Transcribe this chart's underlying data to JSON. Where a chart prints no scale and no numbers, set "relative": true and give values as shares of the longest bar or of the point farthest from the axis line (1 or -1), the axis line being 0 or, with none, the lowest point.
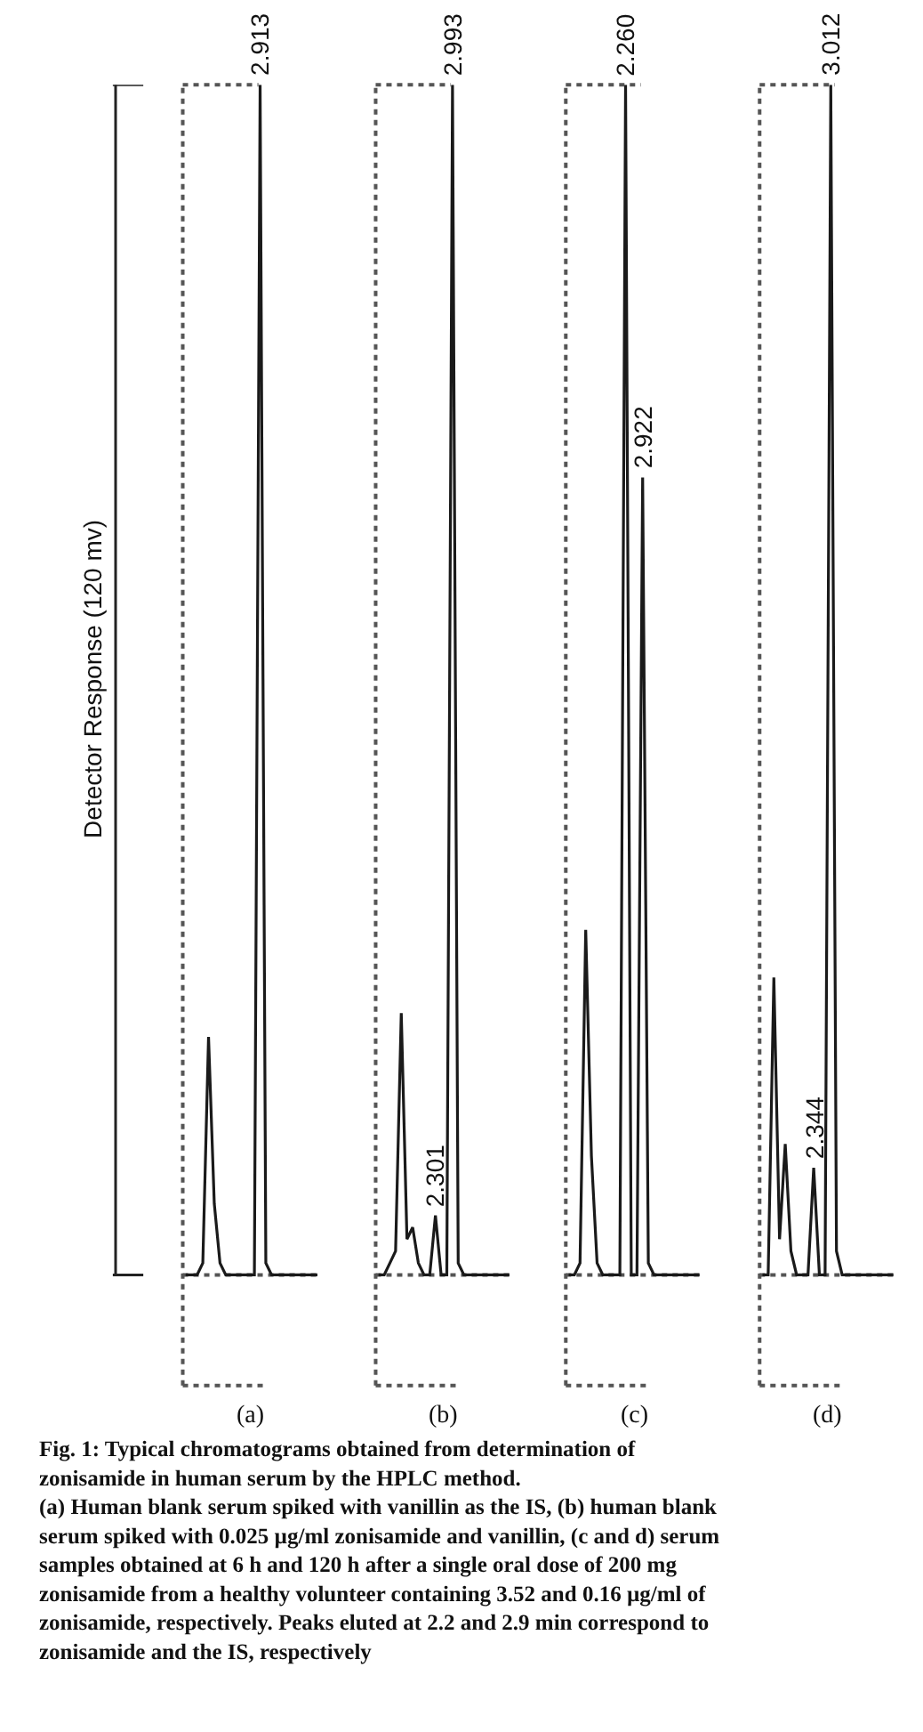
{
  "chart_data": [
    {
      "type": "line",
      "relative": true,
      "ylabel": "Detector Response (120 mv)",
      "xlabel": "(a)",
      "color": "#1a1a1a",
      "categories": [
        null,
        null,
        null,
        null,
        null,
        null,
        null,
        null,
        null,
        null,
        null,
        null,
        null,
        null,
        null,
        null,
        null,
        null,
        null,
        null,
        null,
        null,
        null,
        null
      ],
      "values": [
        0,
        0,
        0,
        0.01,
        0.2,
        0.06,
        0.01,
        0,
        0,
        0,
        0,
        0,
        0,
        1,
        0.01,
        0,
        0,
        0,
        0,
        0,
        0,
        0,
        0,
        0
      ],
      "annotations": [
        {
          "text": "2.913",
          "y": 1
        }
      ]
    },
    {
      "type": "line",
      "relative": true,
      "xlabel": "(b)",
      "color": "#1a1a1a",
      "categories": [
        null,
        null,
        null,
        null,
        null,
        null,
        null,
        null,
        null,
        null,
        null,
        null,
        null,
        null,
        null,
        null,
        null,
        null,
        null,
        null,
        null,
        null,
        null,
        null
      ],
      "values": [
        0,
        0,
        0.01,
        0.02,
        0.22,
        0.03,
        0.04,
        0.01,
        0,
        0,
        0.05,
        0,
        0,
        1,
        0.01,
        0,
        0,
        0,
        0,
        0,
        0,
        0,
        0,
        0
      ],
      "annotations": [
        {
          "text": "2.993",
          "y": 1
        },
        {
          "text": "2.301",
          "y": 0.05
        }
      ]
    },
    {
      "type": "line",
      "relative": true,
      "xlabel": "(c)",
      "color": "#1a1a1a",
      "categories": [
        null,
        null,
        null,
        null,
        null,
        null,
        null,
        null,
        null,
        null,
        null,
        null,
        null,
        null,
        null,
        null,
        null,
        null,
        null,
        null,
        null,
        null,
        null,
        null
      ],
      "values": [
        0,
        0,
        0.01,
        0.29,
        0.1,
        0.01,
        0,
        0,
        0,
        0,
        1,
        0,
        0,
        0.67,
        0.01,
        0,
        0,
        0,
        0,
        0,
        0,
        0,
        0,
        0
      ],
      "annotations": [
        {
          "text": "2.260",
          "y": 1
        },
        {
          "text": "2.922",
          "y": 0.67
        }
      ]
    },
    {
      "type": "line",
      "relative": true,
      "xlabel": "(d)",
      "color": "#1a1a1a",
      "categories": [
        null,
        null,
        null,
        null,
        null,
        null,
        null,
        null,
        null,
        null,
        null,
        null,
        null,
        null,
        null,
        null,
        null,
        null,
        null,
        null,
        null,
        null,
        null,
        null
      ],
      "values": [
        0,
        0,
        0.25,
        0.03,
        0.11,
        0.02,
        0,
        0,
        0,
        0.09,
        0,
        0,
        1,
        0.02,
        0,
        0,
        0,
        0,
        0,
        0,
        0,
        0,
        0,
        0
      ],
      "annotations": [
        {
          "text": "3.012",
          "y": 1
        },
        {
          "text": "2.344",
          "y": 0.09
        }
      ]
    },
    {
      "type": "other",
      "title": "Fig. 1: Typical chromatograms obtained from determination of zonisamide in human serum by the HPLC method.",
      "annotations": [
        "(a) Human blank serum spiked with vanillin as the IS, (b) human blank serum spiked with 0.025 µg/ml zonisamide and vanillin, (c and d) serum samples obtained at 6 h and 120 h after a single oral dose of 200 mg zonisamide from a healthy volunteer containing 3.52 and 0.16 µg/ml of zonisamide, respectively. Peaks eluted at 2.2 and 2.9 min correspond to zonisamide and the IS, respectively"
      ]
    }
  ]
}
